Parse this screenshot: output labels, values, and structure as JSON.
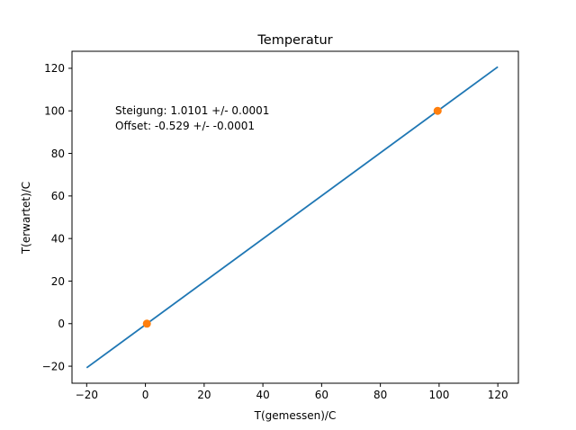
{
  "chart_data": {
    "type": "line",
    "title": "Temperatur",
    "xlabel": "T(gemessen)/C",
    "ylabel": "T(erwartet)/C",
    "xlim": [
      -25,
      127
    ],
    "ylim": [
      -28,
      128
    ],
    "xticks": [
      -20,
      0,
      20,
      40,
      60,
      80,
      100,
      120
    ],
    "yticks": [
      -20,
      0,
      20,
      40,
      60,
      80,
      100,
      120
    ],
    "xtick_labels": [
      "−20",
      "0",
      "20",
      "40",
      "60",
      "80",
      "100",
      "120"
    ],
    "ytick_labels": [
      "−20",
      "0",
      "20",
      "40",
      "60",
      "80",
      "100",
      "120"
    ],
    "grid": false,
    "series": [
      {
        "kind": "line",
        "color": "#1f77b4",
        "x": [
          -20,
          120
        ],
        "y": [
          -20.73,
          120.68
        ]
      },
      {
        "kind": "scatter",
        "color": "#ff7f0e",
        "x": [
          0.5,
          99.5
        ],
        "y": [
          0,
          100
        ]
      }
    ],
    "annotation": [
      "Steigung: 1.0101 +/- 0.0001",
      "Offset: -0.529 +/- -0.0001"
    ]
  }
}
